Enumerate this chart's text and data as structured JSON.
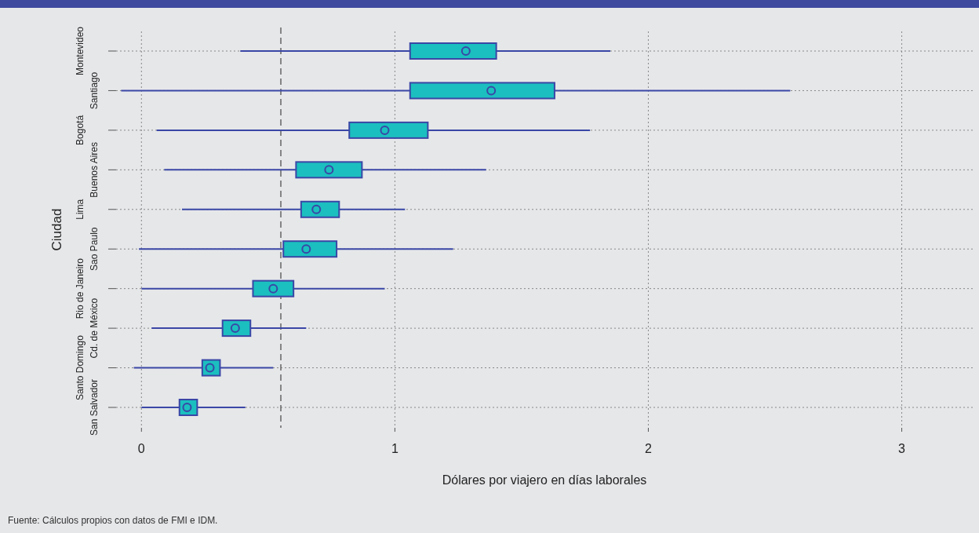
{
  "chart_data": {
    "type": "box",
    "orientation": "horizontal",
    "xlabel": "Dólares por viajero en días laborales",
    "ylabel": "Ciudad",
    "categories": [
      "Montevideo",
      "Santiago",
      "Bogotá",
      "Buenos Aires",
      "Lima",
      "Sao Paulo",
      "Rio de Janeiro",
      "Cd. de México",
      "Santo Domingo",
      "San Salvador"
    ],
    "boxes": [
      {
        "low": 0.39,
        "q1": 1.06,
        "median": 1.28,
        "q3": 1.4,
        "high": 1.85
      },
      {
        "low": -0.08,
        "q1": 1.06,
        "median": 1.38,
        "q3": 1.63,
        "high": 2.56
      },
      {
        "low": 0.06,
        "q1": 0.82,
        "median": 0.96,
        "q3": 1.13,
        "high": 1.77
      },
      {
        "low": 0.09,
        "q1": 0.61,
        "median": 0.74,
        "q3": 0.87,
        "high": 1.36
      },
      {
        "low": 0.16,
        "q1": 0.63,
        "median": 0.69,
        "q3": 0.78,
        "high": 1.04
      },
      {
        "low": -0.01,
        "q1": 0.56,
        "median": 0.65,
        "q3": 0.77,
        "high": 1.23
      },
      {
        "low": 0.0,
        "q1": 0.44,
        "median": 0.52,
        "q3": 0.6,
        "high": 0.96
      },
      {
        "low": 0.04,
        "q1": 0.32,
        "median": 0.37,
        "q3": 0.43,
        "high": 0.65
      },
      {
        "low": -0.03,
        "q1": 0.24,
        "median": 0.27,
        "q3": 0.31,
        "high": 0.52
      },
      {
        "low": 0.0,
        "q1": 0.15,
        "median": 0.18,
        "q3": 0.22,
        "high": 0.41
      }
    ],
    "color": "#1bbfbf",
    "xlim": [
      -0.1,
      3.28
    ],
    "xticks": [
      0,
      1,
      2,
      3
    ],
    "grid": true,
    "ref_lines": [
      {
        "axis": "x",
        "value": 0.55,
        "line_style": "dashed",
        "color": "#666666"
      }
    ],
    "annotations": [
      "Fuente: Cálculos propios con datos de FMI e IDM."
    ]
  }
}
